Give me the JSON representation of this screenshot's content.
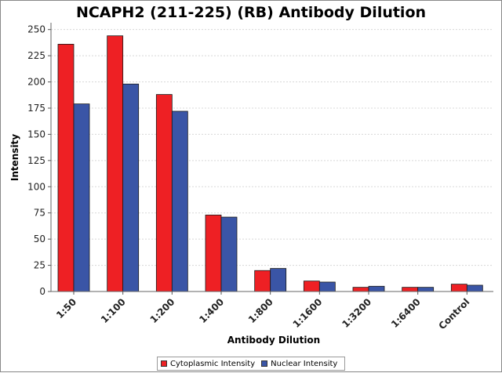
{
  "chart_data": {
    "type": "bar",
    "title": "NCAPH2 (211-225) (RB) Antibody Dilution",
    "xlabel": "Antibody Dilution",
    "ylabel": "Intensity",
    "ylim": [
      0,
      255
    ],
    "yticks": [
      0,
      25,
      50,
      75,
      100,
      125,
      150,
      175,
      200,
      225,
      250
    ],
    "grid": true,
    "legend_position": "bottom-center",
    "categories": [
      "1:50",
      "1:100",
      "1:200",
      "1:400",
      "1:800",
      "1:1600",
      "1:3200",
      "1:6400",
      "Control"
    ],
    "series": [
      {
        "name": "Cytoplasmic Intensity",
        "color": "#ee2024",
        "values": [
          236,
          244,
          188,
          73,
          20,
          10,
          4,
          4,
          7
        ]
      },
      {
        "name": "Nuclear Intensity",
        "color": "#3a55a6",
        "values": [
          179,
          198,
          172,
          71,
          22,
          9,
          5,
          4,
          6
        ]
      }
    ]
  }
}
